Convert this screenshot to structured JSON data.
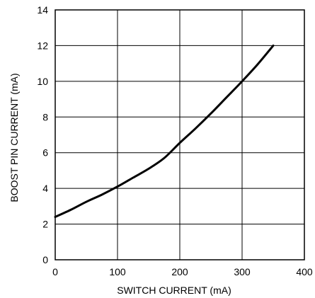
{
  "chart_data": {
    "type": "line",
    "title": "",
    "xlabel": "SWITCH CURRENT (mA)",
    "ylabel": "BOOST PIN CURRENT (mA)",
    "xlim": [
      0,
      400
    ],
    "ylim": [
      0,
      14
    ],
    "xticks": [
      "0",
      "100",
      "200",
      "300",
      "400"
    ],
    "yticks": [
      "0",
      "2",
      "4",
      "6",
      "8",
      "10",
      "12",
      "14"
    ],
    "grid": true,
    "legend": "none",
    "series": [
      {
        "x": [
          0,
          25,
          50,
          75,
          100,
          125,
          150,
          175,
          200,
          225,
          250,
          275,
          300,
          325,
          350
        ],
        "y": [
          2.4,
          2.8,
          3.25,
          3.65,
          4.1,
          4.6,
          5.1,
          5.7,
          6.55,
          7.35,
          8.2,
          9.1,
          10.0,
          10.95,
          12.0
        ]
      }
    ],
    "colors": {
      "line": "#000000",
      "grid": "#000000",
      "frame": "#000000"
    }
  }
}
